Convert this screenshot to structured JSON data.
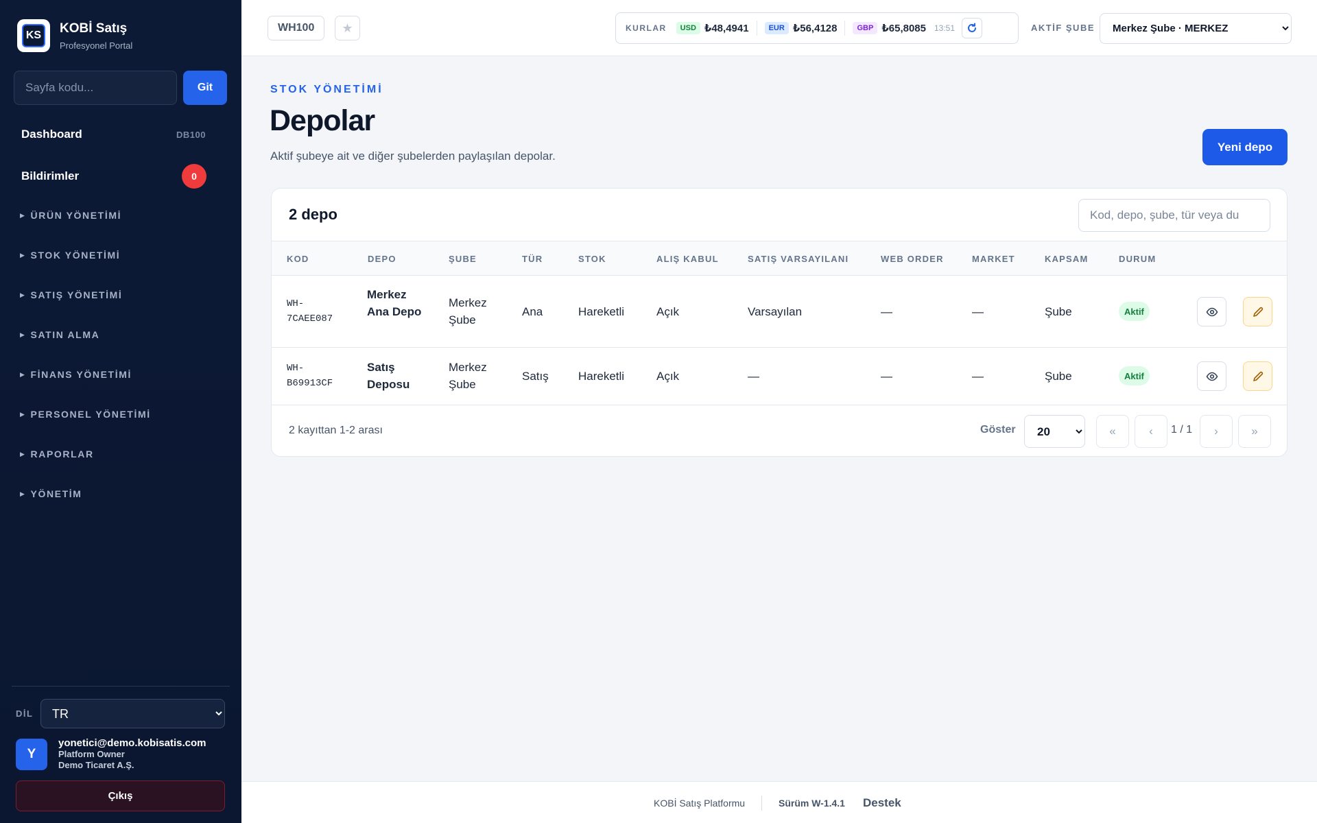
{
  "sidebar": {
    "brand_title": "KOBİ Satış",
    "brand_subtitle": "Profesyonel Portal",
    "logo_text": "KS",
    "goto_placeholder": "Sayfa kodu...",
    "goto_button": "Git",
    "dashboard_label": "Dashboard",
    "dashboard_code": "DB100",
    "notifications_label": "Bildirimler",
    "notifications_count": "0",
    "groups": [
      "ÜRÜN YÖNETİMİ",
      "STOK YÖNETİMİ",
      "SATIŞ YÖNETİMİ",
      "SATIN ALMA",
      "FİNANS YÖNETİMİ",
      "PERSONEL YÖNETİMİ",
      "RAPORLAR",
      "YÖNETİM"
    ],
    "language_label": "DİL",
    "language_value": "TR",
    "user_initial": "Y",
    "user_email": "yonetici@demo.kobisatis.com",
    "user_role": "Platform Owner",
    "user_company": "Demo Ticaret A.Ş.",
    "logout": "Çıkış"
  },
  "topbar": {
    "page_code": "WH100",
    "rates_title": "KURLAR",
    "rates": [
      {
        "code": "USD",
        "value": "₺48,4941"
      },
      {
        "code": "EUR",
        "value": "₺56,4128"
      },
      {
        "code": "GBP",
        "value": "₺65,8085"
      }
    ],
    "rates_time": "13:51",
    "branch_label": "AKTİF ŞUBE",
    "branch_value": "Merkez Şube · MERKEZ"
  },
  "main": {
    "eyebrow": "STOK YÖNETİMİ",
    "title": "Depolar",
    "description": "Aktif şubeye ait ve diğer şubelerden paylaşılan depolar.",
    "new_button": "Yeni depo",
    "count_label": "2 depo",
    "search_placeholder": "Kod, depo, şube, tür veya du",
    "columns": [
      "KOD",
      "DEPO",
      "ŞUBE",
      "TÜR",
      "STOK",
      "ALIŞ KABUL",
      "SATIŞ VARSAYILANI",
      "WEB ORDER",
      "MARKET",
      "KAPSAM",
      "DURUM"
    ],
    "rows": [
      {
        "code_l1": "WH-",
        "code_l2": "7CAEE087",
        "depot": "Merkez Ana Depo",
        "branch": "Merkez Şube",
        "type": "Ana",
        "stock": "Hareketli",
        "purchase": "Açık",
        "sales_default": "Varsayılan",
        "web_order": "—",
        "market": "—",
        "scope": "Şube",
        "status": "Aktif"
      },
      {
        "code_l1": "WH-",
        "code_l2": "B69913CF",
        "depot": "Satış Deposu",
        "branch": "Merkez Şube",
        "type": "Satış",
        "stock": "Hareketli",
        "purchase": "Açık",
        "sales_default": "—",
        "web_order": "—",
        "market": "—",
        "scope": "Şube",
        "status": "Aktif"
      }
    ],
    "footer_info": "2 kayıttan 1-2 arası",
    "show_label": "Göster",
    "page_size": "20",
    "page_indicator": "1 / 1",
    "pager": {
      "first": "«",
      "prev": "‹",
      "next": "›",
      "last": "»"
    }
  },
  "footer": {
    "platform": "KOBİ Satış Platformu",
    "version": "Sürüm W-1.4.1",
    "support": "Destek"
  }
}
